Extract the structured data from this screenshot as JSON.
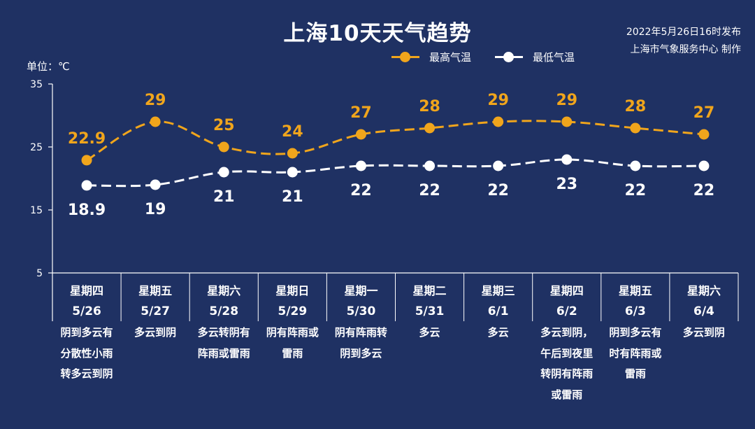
{
  "title": "上海10天天气趋势",
  "publisher": {
    "line1": "2022年5月26日16时发布",
    "line2": "上海市气象服务中心 制作"
  },
  "unit": "单位：℃",
  "colors": {
    "background": "#1f3163",
    "high": "#f0a51c",
    "low": "#ffffff",
    "axis": "#ffffff"
  },
  "chart_data": {
    "type": "line",
    "categories": [
      "星期四 5/26",
      "星期五 5/27",
      "星期六 5/28",
      "星期日 5/29",
      "星期一 5/30",
      "星期二 5/31",
      "星期三 6/1",
      "星期四 6/2",
      "星期五 6/3",
      "星期六 6/4"
    ],
    "days": [
      {
        "weekday": "星期四",
        "date": "5/26",
        "desc": [
          "阴到多云有",
          "分散性小雨",
          "转多云到阴"
        ]
      },
      {
        "weekday": "星期五",
        "date": "5/27",
        "desc": [
          "多云到阴"
        ]
      },
      {
        "weekday": "星期六",
        "date": "5/28",
        "desc": [
          "多云转阴有",
          "阵雨或雷雨"
        ]
      },
      {
        "weekday": "星期日",
        "date": "5/29",
        "desc": [
          "阴有阵雨或",
          "雷雨"
        ]
      },
      {
        "weekday": "星期一",
        "date": "5/30",
        "desc": [
          "阴有阵雨转",
          "阴到多云"
        ]
      },
      {
        "weekday": "星期二",
        "date": "5/31",
        "desc": [
          "多云"
        ]
      },
      {
        "weekday": "星期三",
        "date": "6/1",
        "desc": [
          "多云"
        ]
      },
      {
        "weekday": "星期四",
        "date": "6/2",
        "desc": [
          "多云到阴，",
          "午后到夜里",
          "转阴有阵雨",
          "或雷雨"
        ]
      },
      {
        "weekday": "星期五",
        "date": "6/3",
        "desc": [
          "阴到多云有",
          "时有阵雨或",
          "雷雨"
        ]
      },
      {
        "weekday": "星期六",
        "date": "6/4",
        "desc": [
          "多云到阴"
        ]
      }
    ],
    "series": [
      {
        "name": "最高气温",
        "values": [
          22.9,
          29,
          25,
          24,
          27,
          28,
          29,
          29,
          28,
          27
        ],
        "labels": [
          "22.9",
          "29",
          "25",
          "24",
          "27",
          "28",
          "29",
          "29",
          "28",
          "27"
        ]
      },
      {
        "name": "最低气温",
        "values": [
          18.9,
          19,
          21,
          21,
          22,
          22,
          22,
          23,
          22,
          22
        ],
        "labels": [
          "18.9",
          "19",
          "21",
          "21",
          "22",
          "22",
          "22",
          "23",
          "22",
          "22"
        ]
      }
    ],
    "ylim": [
      5,
      35
    ],
    "yticks": [
      5,
      15,
      25,
      35
    ],
    "ylabel": "单位：℃",
    "grid": false,
    "legend": "top-right"
  }
}
